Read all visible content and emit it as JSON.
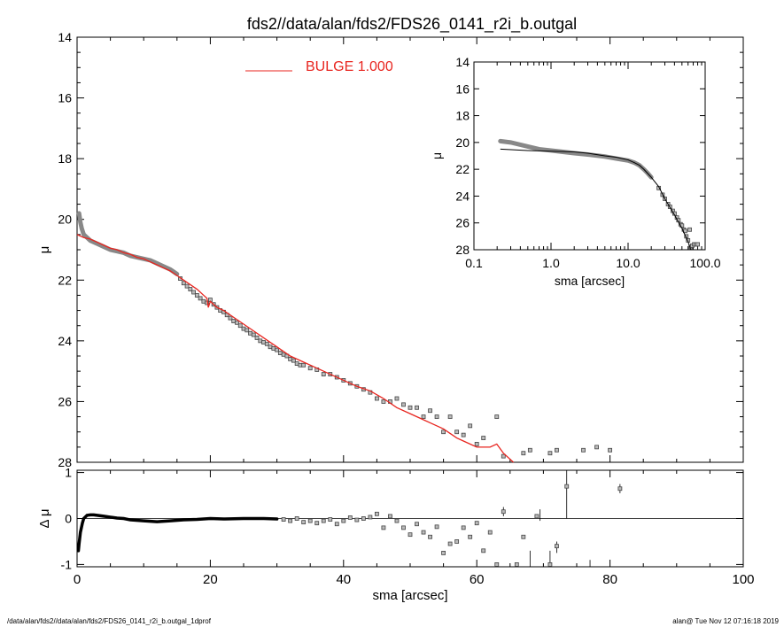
{
  "footer": {
    "left": "/data/alan/fds2//data/alan/fds2/FDS26_0141_r2i_b.outgal_1dprof",
    "right": "alan@  Tue Nov 12 07:16:18 2019"
  },
  "chart_data": [
    {
      "id": "main",
      "type": "scatter",
      "title": "fds2//data/alan/fds2/FDS26_0141_r2i_b.outgal",
      "xlabel": "",
      "ylabel": "μ",
      "xlim": [
        0,
        100
      ],
      "ylim": [
        28,
        14
      ],
      "y_inverted": true,
      "xticks": [],
      "yticks": [
        14,
        16,
        18,
        20,
        22,
        24,
        26,
        28
      ],
      "legend": {
        "label": "BULGE  1.000",
        "color": "#e8251f",
        "placement": "top-left"
      },
      "colors": {
        "model": "#e8251f",
        "profile_thick": "#888888",
        "points": "#444444"
      },
      "profile_thick": {
        "x": [
          0.3,
          0.5,
          0.7,
          1.0,
          1.5,
          2.0,
          3.0,
          4.0,
          5.0,
          6.0,
          7.0,
          8.0,
          9.0,
          10.0,
          11.0,
          12.0,
          13.0,
          14.0,
          15.0
        ],
        "y": [
          19.8,
          20.1,
          20.3,
          20.5,
          20.6,
          20.7,
          20.8,
          20.9,
          21.0,
          21.05,
          21.1,
          21.2,
          21.25,
          21.3,
          21.35,
          21.45,
          21.55,
          21.65,
          21.8
        ]
      },
      "points": {
        "x": [
          15.5,
          16.0,
          16.5,
          17.0,
          17.5,
          18.0,
          18.5,
          19.0,
          19.5,
          20.0,
          20.5,
          21.0,
          21.5,
          22.0,
          22.5,
          23.0,
          23.5,
          24.0,
          24.5,
          25.0,
          25.5,
          26.0,
          26.5,
          27.0,
          27.5,
          28.0,
          28.5,
          29.0,
          29.5,
          30.0,
          30.5,
          31.0,
          31.5,
          32.0,
          32.5,
          33.0,
          33.5,
          34.0,
          35.0,
          36.0,
          37.0,
          38.0,
          39.0,
          40.0,
          41.0,
          42.0,
          43.0,
          44.0,
          45.0,
          46.0,
          47.0,
          48.0,
          49.0,
          50.0,
          51.0,
          52.0,
          53.0,
          54.0,
          55.0,
          56.0,
          57.0,
          58.0,
          59.0,
          60.0,
          61.0,
          63.0,
          64.0,
          67.0,
          68.0,
          71.0,
          72.0,
          76.0,
          78.0,
          80.0
        ],
        "y": [
          21.95,
          22.1,
          22.2,
          22.3,
          22.4,
          22.5,
          22.6,
          22.7,
          22.75,
          22.65,
          22.8,
          22.9,
          23.0,
          23.05,
          23.15,
          23.25,
          23.35,
          23.4,
          23.5,
          23.6,
          23.65,
          23.75,
          23.8,
          23.9,
          24.0,
          24.05,
          24.1,
          24.2,
          24.25,
          24.3,
          24.4,
          24.45,
          24.5,
          24.6,
          24.65,
          24.75,
          24.8,
          24.8,
          24.9,
          24.95,
          25.1,
          25.1,
          25.2,
          25.3,
          25.4,
          25.5,
          25.6,
          25.7,
          25.9,
          26.0,
          26.0,
          25.9,
          26.1,
          26.2,
          26.2,
          26.5,
          26.3,
          26.5,
          27.0,
          26.5,
          27.0,
          27.1,
          26.8,
          27.4,
          27.2,
          26.5,
          27.8,
          27.7,
          27.6,
          27.7,
          27.6,
          27.6,
          27.5,
          27.6
        ]
      },
      "model_curve": {
        "x": [
          0.0,
          1.0,
          2.0,
          3.0,
          4.0,
          5.0,
          6.0,
          7.0,
          8.0,
          9.0,
          10.0,
          11.0,
          12.0,
          13.0,
          14.0,
          15.0,
          16.0,
          17.0,
          18.0,
          19.0,
          19.5,
          19.7,
          20.0,
          21.0,
          22.0,
          24.0,
          26.0,
          28.0,
          30.0,
          32.0,
          34.0,
          36.0,
          38.0,
          40.0,
          42.0,
          44.0,
          46.0,
          48.0,
          50.0,
          52.0,
          53.0,
          55.0,
          57.0,
          58.0,
          60.0,
          62.0,
          63.0,
          64.0,
          65.5
        ],
        "y": [
          20.5,
          20.6,
          20.65,
          20.75,
          20.85,
          20.95,
          21.0,
          21.1,
          21.15,
          21.25,
          21.3,
          21.4,
          21.5,
          21.6,
          21.7,
          21.85,
          22.0,
          22.15,
          22.3,
          22.5,
          22.6,
          22.9,
          22.7,
          22.9,
          23.0,
          23.3,
          23.6,
          23.9,
          24.2,
          24.5,
          24.7,
          24.9,
          25.1,
          25.3,
          25.5,
          25.65,
          25.9,
          26.2,
          26.4,
          26.6,
          26.7,
          26.9,
          27.2,
          27.3,
          27.5,
          27.5,
          27.4,
          27.7,
          28.0
        ]
      }
    },
    {
      "id": "inset",
      "type": "scatter",
      "xlabel": "sma [arcsec]",
      "ylabel": "μ",
      "xscale": "log",
      "xlim": [
        0.1,
        100.0
      ],
      "ylim": [
        28,
        14
      ],
      "y_inverted": true,
      "xticks": [
        "0.1",
        "1.0",
        "10.0",
        "100.0"
      ],
      "yticks": [
        14,
        16,
        18,
        20,
        22,
        24,
        26,
        28
      ],
      "profile_thick": {
        "x": [
          0.22,
          0.3,
          0.5,
          0.7,
          1.0,
          2.0,
          3.0,
          5.0,
          7.0,
          10.0,
          12.0,
          14.0,
          16.0,
          18.0,
          20.0
        ],
        "y": [
          19.9,
          20.0,
          20.3,
          20.5,
          20.6,
          20.8,
          20.9,
          21.05,
          21.2,
          21.35,
          21.5,
          21.7,
          22.0,
          22.3,
          22.6
        ]
      },
      "model_curve": {
        "x": [
          0.22,
          0.5,
          1.0,
          2.0,
          3.0,
          5.0,
          7.0,
          10.0,
          12.0,
          14.0,
          16.0,
          20.0,
          25.0,
          30.0,
          40.0,
          50.0,
          60.0,
          65.0
        ],
        "y": [
          20.5,
          20.6,
          20.65,
          20.7,
          20.8,
          21.0,
          21.1,
          21.3,
          21.5,
          21.7,
          22.0,
          22.6,
          23.3,
          24.2,
          25.4,
          26.4,
          27.4,
          28.0
        ]
      },
      "points": {
        "x": [
          25.0,
          28.0,
          30.0,
          33.0,
          35.0,
          38.0,
          40.0,
          43.0,
          45.0,
          48.0,
          50.0,
          53.0,
          55.0,
          57.0,
          60.0,
          63.0,
          65.0,
          68.0,
          72.0,
          76.0,
          80.0
        ],
        "y": [
          23.4,
          23.9,
          24.2,
          24.6,
          24.8,
          25.1,
          25.3,
          25.6,
          25.8,
          26.1,
          26.2,
          26.5,
          26.6,
          27.0,
          27.3,
          26.5,
          27.8,
          27.7,
          27.6,
          27.6,
          27.6
        ]
      }
    },
    {
      "id": "residual",
      "type": "scatter",
      "xlabel": "sma [arcsec]",
      "ylabel": "Δ μ",
      "xlim": [
        0,
        100
      ],
      "ylim": [
        -1.05,
        1.05
      ],
      "xticks": [
        0,
        20,
        40,
        60,
        80,
        100
      ],
      "yticks": [
        -1,
        0,
        1
      ],
      "zero_line": true,
      "residual_thick": {
        "x": [
          0.2,
          0.3,
          0.5,
          0.8,
          1.0,
          1.5,
          2.0,
          2.5,
          3.0,
          4.0,
          5.0,
          6.0,
          7.0,
          8.0,
          10.0,
          12.0,
          14.0,
          16.0,
          18.0,
          20.0,
          22.0,
          25.0,
          28.0,
          30.0
        ],
        "y": [
          -0.7,
          -0.55,
          -0.3,
          -0.1,
          0.0,
          0.07,
          0.08,
          0.08,
          0.07,
          0.05,
          0.03,
          0.01,
          0.0,
          -0.03,
          -0.05,
          -0.07,
          -0.05,
          -0.03,
          -0.02,
          0.0,
          -0.01,
          0.0,
          0.0,
          -0.01
        ]
      },
      "points": {
        "x": [
          31,
          32,
          33,
          34,
          35,
          36,
          37,
          38,
          39,
          40,
          41,
          42,
          43,
          44,
          45,
          46,
          47,
          48,
          49,
          50,
          51,
          52,
          53,
          54,
          55,
          56,
          57,
          58,
          59,
          60,
          61,
          62,
          63,
          64,
          66,
          67,
          69,
          71,
          72,
          73.5,
          81.5
        ],
        "y": [
          -0.02,
          -0.05,
          0.0,
          -0.08,
          -0.05,
          -0.1,
          -0.05,
          -0.02,
          -0.12,
          -0.05,
          0.02,
          -0.03,
          0.0,
          0.03,
          0.1,
          -0.2,
          0.05,
          -0.05,
          -0.2,
          -0.35,
          -0.12,
          -0.3,
          -0.4,
          -0.18,
          -0.75,
          -0.55,
          -0.5,
          -0.2,
          -0.4,
          -0.1,
          -0.7,
          -0.3,
          -1.0,
          0.15,
          -1.0,
          -0.4,
          0.05,
          -1.0,
          -0.6,
          0.7,
          0.65
        ]
      },
      "error_bars": {
        "x": [
          64,
          68,
          69.5,
          71,
          72,
          73.5,
          77,
          81.5
        ],
        "y_low": [
          0.05,
          -1.05,
          -0.05,
          -1.05,
          -0.75,
          0.0,
          -1.05,
          0.55
        ],
        "y_high": [
          0.25,
          -0.7,
          0.2,
          -0.7,
          -0.5,
          1.05,
          -0.9,
          0.75
        ]
      }
    }
  ]
}
